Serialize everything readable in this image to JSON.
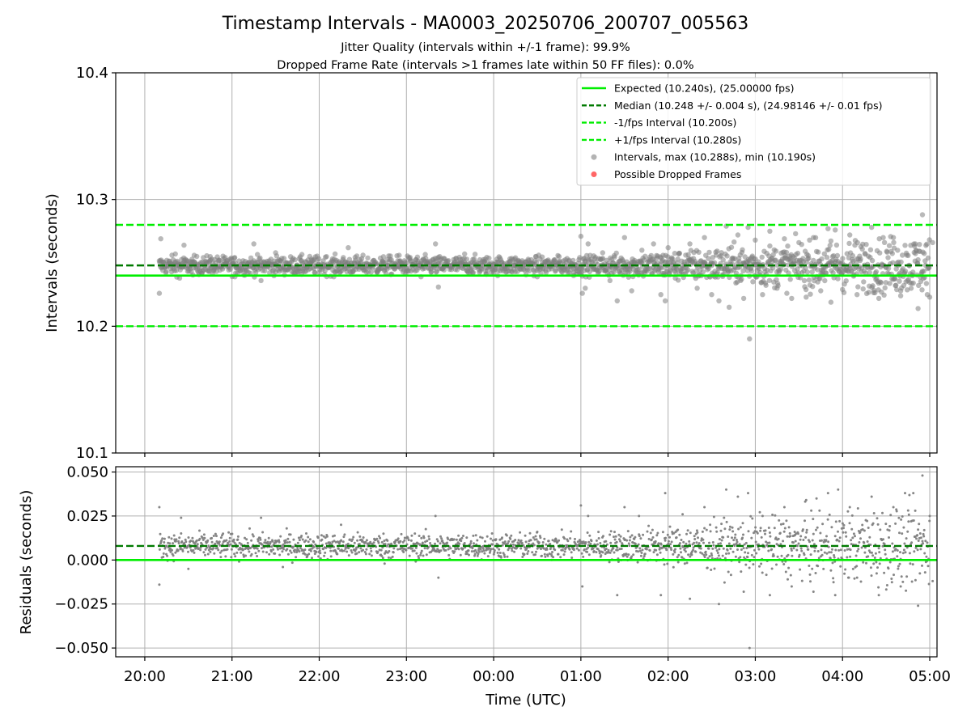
{
  "title": "Timestamp Intervals - MA0003_20250706_200707_005563",
  "subtitle_1": "Jitter Quality (intervals within +/-1 frame): 99.9%",
  "subtitle_2": "Dropped Frame Rate (intervals >1 frames late within 50 FF files): 0.0%",
  "colors": {
    "expected": "#00ee00",
    "median": "#007a00",
    "bounds": "#00ee00",
    "points": "#808080",
    "dropped": "#ff6666",
    "grid": "#b0b0b0"
  },
  "chart_data": [
    {
      "type": "scatter",
      "name": "intervals",
      "ylabel": "Intervals (seconds)",
      "ylim": [
        10.1,
        10.4
      ],
      "yticks": [
        "10.1",
        "10.2",
        "10.3",
        "10.4"
      ],
      "ytick_values": [
        10.1,
        10.2,
        10.3,
        10.4
      ],
      "grid": true,
      "legend_position": "top-right",
      "reference_lines": {
        "expected": 10.24,
        "median": 10.248,
        "lower": 10.2,
        "upper": 10.28
      },
      "legend": [
        "Expected (10.240s), (25.00000 fps)",
        "Median (10.248 +/- 0.004 s), (24.98146 +/- 0.01 fps)",
        "-1/fps Interval (10.200s)",
        "+1/fps Interval (10.280s)",
        "Intervals, max (10.288s), min (10.190s)",
        "Possible Dropped Frames"
      ],
      "points": [
        [
          "20:10",
          10.226
        ],
        [
          "20:11",
          10.269
        ],
        [
          "20:21",
          10.257
        ],
        [
          "20:24",
          10.238
        ],
        [
          "20:27",
          10.264
        ],
        [
          "20:32",
          10.243
        ],
        [
          "20:45",
          10.255
        ],
        [
          "21:02",
          10.239
        ],
        [
          "21:15",
          10.265
        ],
        [
          "21:20",
          10.236
        ],
        [
          "21:30",
          10.258
        ],
        [
          "21:48",
          10.241
        ],
        [
          "22:05",
          10.255
        ],
        [
          "22:10",
          10.239
        ],
        [
          "22:20",
          10.262
        ],
        [
          "22:40",
          10.243
        ],
        [
          "22:55",
          10.256
        ],
        [
          "23:10",
          10.239
        ],
        [
          "23:20",
          10.265
        ],
        [
          "23:22",
          10.231
        ],
        [
          "23:40",
          10.257
        ],
        [
          "23:55",
          10.241
        ],
        [
          "00:15",
          10.254
        ],
        [
          "00:30",
          10.239
        ],
        [
          "00:45",
          10.255
        ],
        [
          "00:55",
          10.24
        ],
        [
          "01:00",
          10.271
        ],
        [
          "01:01",
          10.226
        ],
        [
          "01:05",
          10.265
        ],
        [
          "01:03",
          10.23
        ],
        [
          "01:15",
          10.258
        ],
        [
          "01:20",
          10.236
        ],
        [
          "01:25",
          10.22
        ],
        [
          "01:30",
          10.27
        ],
        [
          "01:35",
          10.228
        ],
        [
          "01:42",
          10.26
        ],
        [
          "01:50",
          10.265
        ],
        [
          "01:55",
          10.225
        ],
        [
          "01:58",
          10.22
        ],
        [
          "02:00",
          10.262
        ],
        [
          "02:05",
          10.238
        ],
        [
          "02:15",
          10.265
        ],
        [
          "02:20",
          10.23
        ],
        [
          "02:25",
          10.27
        ],
        [
          "02:30",
          10.225
        ],
        [
          "02:35",
          10.22
        ],
        [
          "02:40",
          10.279
        ],
        [
          "02:42",
          10.215
        ],
        [
          "02:48",
          10.272
        ],
        [
          "02:52",
          10.222
        ],
        [
          "02:55",
          10.278
        ],
        [
          "02:56",
          10.19
        ],
        [
          "03:00",
          10.268
        ],
        [
          "03:05",
          10.225
        ],
        [
          "03:10",
          10.275
        ],
        [
          "03:15",
          10.23
        ],
        [
          "03:20",
          10.269
        ],
        [
          "03:25",
          10.222
        ],
        [
          "03:30",
          10.266
        ],
        [
          "03:35",
          10.223
        ],
        [
          "03:40",
          10.27
        ],
        [
          "03:45",
          10.228
        ],
        [
          "03:50",
          10.277
        ],
        [
          "03:52",
          10.219
        ],
        [
          "03:55",
          10.276
        ],
        [
          "04:00",
          10.229
        ],
        [
          "04:05",
          10.272
        ],
        [
          "04:10",
          10.225
        ],
        [
          "04:20",
          10.278
        ],
        [
          "04:25",
          10.222
        ],
        [
          "04:35",
          10.27
        ],
        [
          "04:40",
          10.224
        ],
        [
          "04:50",
          10.265
        ],
        [
          "04:52",
          10.214
        ],
        [
          "04:55",
          10.288
        ],
        [
          "05:00",
          10.223
        ],
        [
          "05:02",
          10.266
        ]
      ]
    },
    {
      "type": "scatter",
      "name": "residuals",
      "ylabel": "Residuals (seconds)",
      "xlabel": "Time (UTC)",
      "ylim": [
        -0.055,
        0.053
      ],
      "yticks": [
        "−0.050",
        "−0.025",
        "0.000",
        "0.025",
        "0.050"
      ],
      "ytick_values": [
        -0.05,
        -0.025,
        0.0,
        0.025,
        0.05
      ],
      "xticks": [
        "20:00",
        "21:00",
        "22:00",
        "23:00",
        "00:00",
        "01:00",
        "02:00",
        "03:00",
        "04:00",
        "05:00"
      ],
      "xlim": [
        "19:40",
        "05:05"
      ],
      "grid": true,
      "reference_lines": {
        "expected": 0.0,
        "median": 0.008
      },
      "points": [
        [
          "20:10",
          0.03
        ],
        [
          "20:10",
          -0.014
        ],
        [
          "20:25",
          0.024
        ],
        [
          "20:30",
          -0.005
        ],
        [
          "21:20",
          0.024
        ],
        [
          "21:35",
          -0.004
        ],
        [
          "22:15",
          0.02
        ],
        [
          "22:45",
          -0.002
        ],
        [
          "23:20",
          0.025
        ],
        [
          "23:22",
          -0.01
        ],
        [
          "00:30",
          0.016
        ],
        [
          "00:40",
          0.0
        ],
        [
          "01:00",
          0.031
        ],
        [
          "01:01",
          -0.015
        ],
        [
          "01:05",
          0.025
        ],
        [
          "01:25",
          -0.02
        ],
        [
          "01:30",
          0.03
        ],
        [
          "01:40",
          0.025
        ],
        [
          "01:55",
          -0.02
        ],
        [
          "01:58",
          0.038
        ],
        [
          "02:10",
          0.026
        ],
        [
          "02:15",
          -0.022
        ],
        [
          "02:25",
          0.03
        ],
        [
          "02:35",
          -0.025
        ],
        [
          "02:40",
          0.04
        ],
        [
          "02:48",
          0.036
        ],
        [
          "02:52",
          -0.018
        ],
        [
          "02:55",
          0.038
        ],
        [
          "02:56",
          -0.05
        ],
        [
          "03:05",
          0.025
        ],
        [
          "03:10",
          -0.02
        ],
        [
          "03:20",
          0.03
        ],
        [
          "03:25",
          -0.015
        ],
        [
          "03:35",
          0.034
        ],
        [
          "03:40",
          -0.018
        ],
        [
          "03:50",
          0.038
        ],
        [
          "03:55",
          -0.02
        ],
        [
          "03:57",
          0.04
        ],
        [
          "04:05",
          0.03
        ],
        [
          "04:10",
          -0.01
        ],
        [
          "04:20",
          0.036
        ],
        [
          "04:25",
          -0.02
        ],
        [
          "04:35",
          0.03
        ],
        [
          "04:40",
          -0.015
        ],
        [
          "04:50",
          0.028
        ],
        [
          "04:52",
          -0.026
        ],
        [
          "04:55",
          0.048
        ],
        [
          "05:00",
          0.025
        ],
        [
          "05:02",
          -0.012
        ]
      ]
    }
  ]
}
